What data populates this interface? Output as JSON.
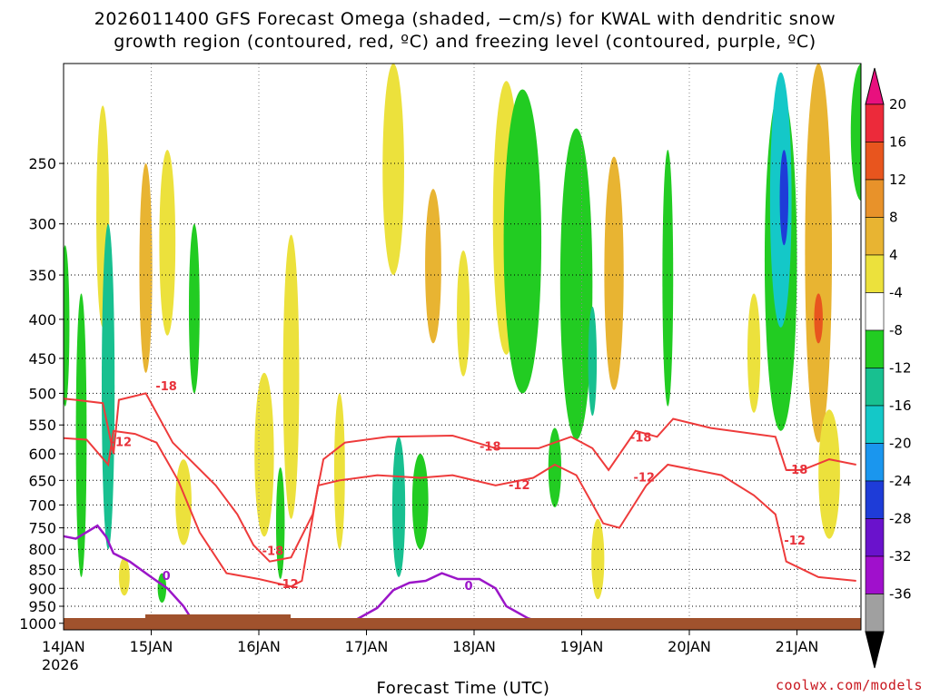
{
  "title_line1": "2026011400 GFS Forecast Omega (shaded, −cm/s) for KWAL with dendritic snow",
  "title_line2": "growth region (contoured, red, ºC) and freezing level (contoured, purple, ºC)",
  "credit": "coolwx.com/models",
  "chart_data": {
    "type": "heatmap",
    "xlabel": "Forecast Time (UTC)",
    "ylabel": "",
    "x_ticks": [
      "14JAN",
      "15JAN",
      "16JAN",
      "17JAN",
      "18JAN",
      "19JAN",
      "20JAN",
      "21JAN"
    ],
    "x_year": "2026",
    "x_range_days": [
      0,
      7.55
    ],
    "y_ticks": [
      250,
      300,
      350,
      400,
      450,
      500,
      550,
      600,
      650,
      700,
      750,
      800,
      850,
      900,
      950,
      1000
    ],
    "y_range_hpa": [
      185,
      1020
    ],
    "grid": true,
    "colorbar": {
      "levels": [
        "-36",
        "-32",
        "-28",
        "-24",
        "-20",
        "-16",
        "-12",
        "-8",
        "-4",
        "4",
        "8",
        "12",
        "16",
        "20"
      ],
      "colors": [
        "#000000",
        "#a0a0a0",
        "#a010cc",
        "#6a12cc",
        "#1e3cd8",
        "#1a96ee",
        "#14c8c8",
        "#18c090",
        "#22cc22",
        "#ffffff",
        "#ece13c",
        "#e8b432",
        "#e8922a",
        "#e8551e",
        "#ec2a3a",
        "#e8107e"
      ]
    },
    "omega_cells": [
      {
        "t": 0.55,
        "p": 310,
        "w": 0.12,
        "h": 200,
        "v": 6
      },
      {
        "t": 0.95,
        "p": 360,
        "w": 0.12,
        "h": 220,
        "v": 8
      },
      {
        "t": 1.15,
        "p": 330,
        "w": 0.15,
        "h": 180,
        "v": 5
      },
      {
        "t": 1.3,
        "p": 700,
        "w": 0.15,
        "h": 180,
        "v": 6
      },
      {
        "t": 0.75,
        "p": 870,
        "w": 0.1,
        "h": 100,
        "v": 6
      },
      {
        "t": 2.3,
        "p": 520,
        "w": 0.15,
        "h": 420,
        "v": 6
      },
      {
        "t": 2.75,
        "p": 650,
        "w": 0.1,
        "h": 300,
        "v": 5
      },
      {
        "t": 2.05,
        "p": 620,
        "w": 0.18,
        "h": 300,
        "v": 5
      },
      {
        "t": 3.25,
        "p": 250,
        "w": 0.2,
        "h": 200,
        "v": 6
      },
      {
        "t": 3.62,
        "p": 350,
        "w": 0.15,
        "h": 160,
        "v": 9
      },
      {
        "t": 3.9,
        "p": 400,
        "w": 0.12,
        "h": 150,
        "v": 5
      },
      {
        "t": 4.3,
        "p": 320,
        "w": 0.25,
        "h": 250,
        "v": 5
      },
      {
        "t": 5.3,
        "p": 370,
        "w": 0.18,
        "h": 250,
        "v": 8
      },
      {
        "t": 5.15,
        "p": 830,
        "w": 0.12,
        "h": 200,
        "v": 6
      },
      {
        "t": 6.6,
        "p": 450,
        "w": 0.12,
        "h": 160,
        "v": 5
      },
      {
        "t": 7.2,
        "p": 380,
        "w": 0.25,
        "h": 400,
        "v": 10
      },
      {
        "t": 7.2,
        "p": 400,
        "w": 0.08,
        "h": 60,
        "v": 16
      },
      {
        "t": 7.3,
        "p": 650,
        "w": 0.2,
        "h": 250,
        "v": 5
      },
      {
        "t": 0.35,
        "p": 620,
        "w": 0.1,
        "h": 500,
        "v": -6
      },
      {
        "t": 0.6,
        "p": 550,
        "w": 0.12,
        "h": 500,
        "v": -10
      },
      {
        "t": 0.2,
        "p": 420,
        "w": 0.08,
        "h": 200,
        "v": -5
      },
      {
        "t": 1.4,
        "p": 400,
        "w": 0.1,
        "h": 200,
        "v": -6
      },
      {
        "t": 2.2,
        "p": 750,
        "w": 0.08,
        "h": 250,
        "v": -6
      },
      {
        "t": 3.3,
        "p": 720,
        "w": 0.12,
        "h": 300,
        "v": -10
      },
      {
        "t": 3.5,
        "p": 700,
        "w": 0.15,
        "h": 200,
        "v": -6
      },
      {
        "t": 1.1,
        "p": 900,
        "w": 0.08,
        "h": 80,
        "v": -6
      },
      {
        "t": 4.45,
        "p": 350,
        "w": 0.35,
        "h": 300,
        "v": -6
      },
      {
        "t": 4.95,
        "p": 400,
        "w": 0.3,
        "h": 350,
        "v": -6
      },
      {
        "t": 5.1,
        "p": 460,
        "w": 0.08,
        "h": 150,
        "v": -10
      },
      {
        "t": 5.8,
        "p": 380,
        "w": 0.1,
        "h": 280,
        "v": -8
      },
      {
        "t": 6.85,
        "p": 380,
        "w": 0.3,
        "h": 360,
        "v": -6
      },
      {
        "t": 6.85,
        "p": 300,
        "w": 0.2,
        "h": 220,
        "v": -14
      },
      {
        "t": 6.88,
        "p": 280,
        "w": 0.08,
        "h": 80,
        "v": -24
      },
      {
        "t": 7.6,
        "p": 230,
        "w": 0.2,
        "h": 100,
        "v": -6
      },
      {
        "t": 4.75,
        "p": 630,
        "w": 0.12,
        "h": 150,
        "v": -8
      }
    ],
    "dgz_contours": [
      {
        "label": "-18",
        "points": [
          [
            0.0,
            505
          ],
          [
            0.3,
            510
          ],
          [
            0.55,
            515
          ],
          [
            0.65,
            600
          ],
          [
            0.7,
            510
          ],
          [
            0.95,
            500
          ],
          [
            1.2,
            580
          ],
          [
            1.6,
            660
          ],
          [
            1.8,
            720
          ],
          [
            1.95,
            790
          ],
          [
            2.1,
            830
          ],
          [
            2.3,
            820
          ],
          [
            2.5,
            720
          ],
          [
            2.6,
            610
          ],
          [
            2.8,
            580
          ],
          [
            3.2,
            570
          ],
          [
            3.8,
            568
          ],
          [
            4.2,
            590
          ],
          [
            4.6,
            590
          ],
          [
            4.9,
            570
          ],
          [
            5.1,
            590
          ],
          [
            5.25,
            630
          ],
          [
            5.5,
            560
          ],
          [
            5.7,
            570
          ],
          [
            5.85,
            540
          ],
          [
            6.2,
            555
          ],
          [
            6.8,
            570
          ],
          [
            6.9,
            630
          ],
          [
            7.05,
            630
          ],
          [
            7.3,
            610
          ],
          [
            7.55,
            620
          ]
        ],
        "label_pos": [
          [
            1.14,
            490
          ],
          [
            2.13,
            805
          ],
          [
            4.15,
            588
          ],
          [
            5.55,
            572
          ],
          [
            7.0,
            630
          ]
        ]
      },
      {
        "label": "-12",
        "points": [
          [
            0.0,
            570
          ],
          [
            0.4,
            575
          ],
          [
            0.6,
            620
          ],
          [
            0.65,
            560
          ],
          [
            0.85,
            565
          ],
          [
            1.05,
            580
          ],
          [
            1.25,
            650
          ],
          [
            1.45,
            760
          ],
          [
            1.7,
            860
          ],
          [
            2.0,
            875
          ],
          [
            2.3,
            895
          ],
          [
            2.4,
            880
          ],
          [
            2.55,
            660
          ],
          [
            2.75,
            650
          ],
          [
            3.1,
            640
          ],
          [
            3.5,
            645
          ],
          [
            3.8,
            640
          ],
          [
            4.2,
            660
          ],
          [
            4.55,
            645
          ],
          [
            4.75,
            620
          ],
          [
            4.95,
            640
          ],
          [
            5.2,
            740
          ],
          [
            5.35,
            750
          ],
          [
            5.6,
            660
          ],
          [
            5.8,
            620
          ],
          [
            6.3,
            640
          ],
          [
            6.6,
            680
          ],
          [
            6.8,
            720
          ],
          [
            6.9,
            830
          ],
          [
            7.2,
            870
          ],
          [
            7.55,
            880
          ]
        ],
        "label_pos": [
          [
            0.72,
            580
          ],
          [
            2.27,
            890
          ],
          [
            4.42,
            660
          ],
          [
            5.58,
            645
          ],
          [
            6.98,
            780
          ]
        ]
      }
    ],
    "freezing_level": {
      "label": "0",
      "points": [
        [
          0.0,
          760
        ],
        [
          0.3,
          775
        ],
        [
          0.5,
          745
        ],
        [
          0.58,
          770
        ],
        [
          0.65,
          810
        ],
        [
          0.8,
          830
        ],
        [
          1.0,
          870
        ],
        [
          1.15,
          900
        ],
        [
          1.3,
          950
        ],
        [
          1.4,
          1000
        ],
        [
          1.5,
          1010
        ],
        [
          2.8,
          1010
        ],
        [
          2.9,
          990
        ],
        [
          3.1,
          955
        ],
        [
          3.25,
          905
        ],
        [
          3.4,
          885
        ],
        [
          3.55,
          880
        ],
        [
          3.7,
          860
        ],
        [
          3.85,
          875
        ],
        [
          4.05,
          875
        ],
        [
          4.2,
          900
        ],
        [
          4.3,
          950
        ],
        [
          4.5,
          985
        ],
        [
          4.7,
          1005
        ],
        [
          4.9,
          1000
        ],
        [
          5.0,
          1010
        ]
      ],
      "label_pos": [
        [
          1.14,
          868
        ],
        [
          3.95,
          895
        ]
      ]
    }
  }
}
